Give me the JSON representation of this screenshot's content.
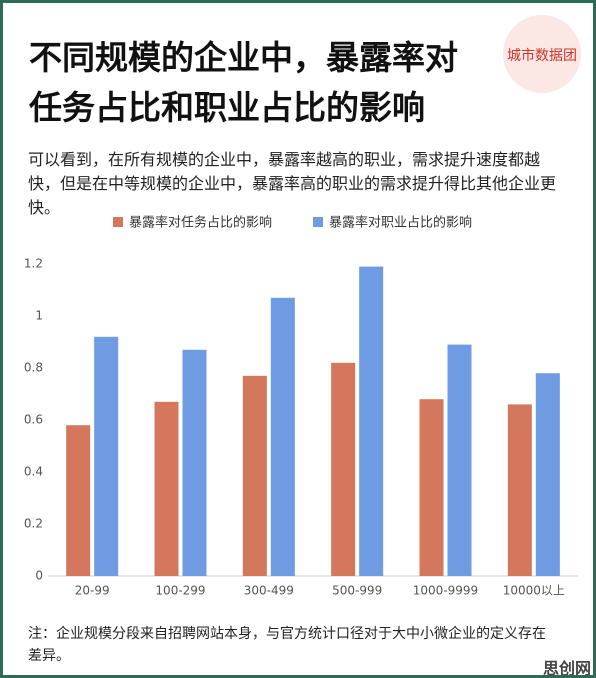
{
  "chart_data": {
    "type": "bar",
    "title": "不同规模的企业中，暴露率对任务占比和职业占比的影响",
    "subtitle": "可以看到，在所有规模的企业中，暴露率越高的职业，需求提升速度都越快，但是在中等规模的企业中，暴露率高的职业的需求提升得比其他企业更快。",
    "categories": [
      "20-99",
      "100-299",
      "300-499",
      "500-999",
      "1000-9999",
      "10000以上"
    ],
    "series": [
      {
        "name": "暴露率对任务占比的影响",
        "color": "#d4775c",
        "values": [
          0.58,
          0.67,
          0.77,
          0.82,
          0.68,
          0.66
        ]
      },
      {
        "name": "暴露率对职业占比的影响",
        "color": "#6f9be3",
        "values": [
          0.92,
          0.87,
          1.07,
          1.19,
          0.89,
          0.78
        ]
      }
    ],
    "ylim": [
      0,
      1.2
    ],
    "yticks": [
      0,
      0.2,
      0.4,
      0.6,
      0.8,
      1,
      1.2
    ],
    "grid": false,
    "legend": "top"
  },
  "note": "注：企业规模分段来自招聘网站本身，与官方统计口径对于大中小微企业的定义存在差异。",
  "watermark": "城市数据团",
  "site_mark": "思创网"
}
